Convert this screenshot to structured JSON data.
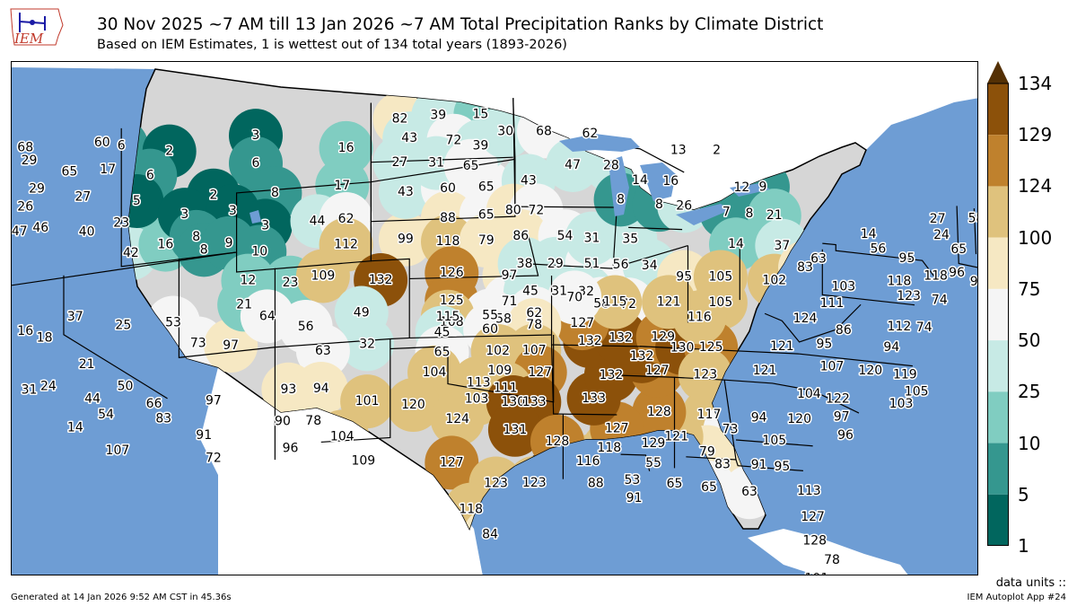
{
  "header": {
    "title": "30 Nov 2025 ~7 AM till 13 Jan 2026 ~7 AM Total Precipitation Ranks by Climate District",
    "subtitle": "Based on IEM Estimates, 1 is wettest out of 134 total years (1893-2026)",
    "logo_text": "IEM"
  },
  "colorbar": {
    "ticks": [
      "134",
      "129",
      "124",
      "100",
      "75",
      "50",
      "25",
      "10",
      "5",
      "1"
    ],
    "bins": [
      {
        "from": 1,
        "to": 5,
        "color": "#01665e"
      },
      {
        "from": 5,
        "to": 10,
        "color": "#35978f"
      },
      {
        "from": 10,
        "to": 25,
        "color": "#80cdc1"
      },
      {
        "from": 25,
        "to": 50,
        "color": "#c7eae5"
      },
      {
        "from": 50,
        "to": 75,
        "color": "#f5f5f5"
      },
      {
        "from": 75,
        "to": 100,
        "color": "#f6e8c3"
      },
      {
        "from": 100,
        "to": 124,
        "color": "#dfc27d"
      },
      {
        "from": 124,
        "to": 129,
        "color": "#bf812d"
      },
      {
        "from": 129,
        "to": 134,
        "color": "#8c510a"
      }
    ],
    "extend_color": "#543005"
  },
  "colors": {
    "ocean": "#6e9dd4",
    "land_outside": "#ffffff",
    "border": "#000000"
  },
  "map_labels": [
    {
      "v": 68,
      "lon": -122.0,
      "lat": 48.8
    },
    {
      "v": 19,
      "lon": -123.8,
      "lat": 48.4
    },
    {
      "v": 8,
      "lon": -123.0,
      "lat": 48.1
    },
    {
      "v": 29,
      "lon": -121.8,
      "lat": 48.1
    },
    {
      "v": 60,
      "lon": -118.0,
      "lat": 48.4
    },
    {
      "v": 6,
      "lon": -117.0,
      "lat": 48.1
    },
    {
      "v": 65,
      "lon": -119.7,
      "lat": 47.2
    },
    {
      "v": 17,
      "lon": -117.7,
      "lat": 47.0
    },
    {
      "v": 29,
      "lon": -121.4,
      "lat": 46.6
    },
    {
      "v": 25,
      "lon": -123.9,
      "lat": 45.8
    },
    {
      "v": 26,
      "lon": -122.0,
      "lat": 45.8
    },
    {
      "v": 27,
      "lon": -119.0,
      "lat": 45.8
    },
    {
      "v": 54,
      "lon": -123.8,
      "lat": 44.6
    },
    {
      "v": 47,
      "lon": -122.3,
      "lat": 44.6
    },
    {
      "v": 46,
      "lon": -121.2,
      "lat": 44.6
    },
    {
      "v": 40,
      "lon": -118.8,
      "lat": 44.0
    },
    {
      "v": 23,
      "lon": -117.0,
      "lat": 44.2
    },
    {
      "v": 42,
      "lon": -116.5,
      "lat": 42.6
    },
    {
      "v": 16,
      "lon": -114.7,
      "lat": 42.8
    },
    {
      "v": 2,
      "lon": -114.5,
      "lat": 47.5
    },
    {
      "v": 3,
      "lon": -110.0,
      "lat": 47.8
    },
    {
      "v": 6,
      "lon": -115.5,
      "lat": 46.4
    },
    {
      "v": 6,
      "lon": -110.0,
      "lat": 46.4
    },
    {
      "v": 5,
      "lon": -116.2,
      "lat": 45.2
    },
    {
      "v": 2,
      "lon": -112.2,
      "lat": 45.0
    },
    {
      "v": 8,
      "lon": -109.0,
      "lat": 44.8
    },
    {
      "v": 16,
      "lon": -105.3,
      "lat": 46.8
    },
    {
      "v": 17,
      "lon": -105.5,
      "lat": 44.9
    },
    {
      "v": 3,
      "lon": -113.7,
      "lat": 44.2
    },
    {
      "v": 3,
      "lon": -111.2,
      "lat": 44.1
    },
    {
      "v": 3,
      "lon": -109.5,
      "lat": 43.2
    },
    {
      "v": 8,
      "lon": -113.1,
      "lat": 43.0
    },
    {
      "v": 8,
      "lon": -112.7,
      "lat": 42.3
    },
    {
      "v": 9,
      "lon": -111.4,
      "lat": 42.5
    },
    {
      "v": 10,
      "lon": -109.8,
      "lat": 41.9
    },
    {
      "v": 44,
      "lon": -106.8,
      "lat": 43.2
    },
    {
      "v": 62,
      "lon": -105.3,
      "lat": 43.2
    },
    {
      "v": 12,
      "lon": -110.4,
      "lat": 40.5
    },
    {
      "v": 23,
      "lon": -108.2,
      "lat": 40.2
    },
    {
      "v": 109,
      "lon": -106.5,
      "lat": 40.4
    },
    {
      "v": 112,
      "lon": -105.3,
      "lat": 41.9
    },
    {
      "v": 99,
      "lon": -102.2,
      "lat": 42.0
    },
    {
      "v": 43,
      "lon": -102.2,
      "lat": 44.4
    },
    {
      "v": 60,
      "lon": -100.0,
      "lat": 44.5
    },
    {
      "v": 65,
      "lon": -98.0,
      "lat": 44.5
    },
    {
      "v": 88,
      "lon": -100.0,
      "lat": 43.0
    },
    {
      "v": 65,
      "lon": -98.0,
      "lat": 43.1
    },
    {
      "v": 118,
      "lon": -100.0,
      "lat": 41.8
    },
    {
      "v": 79,
      "lon": -98.0,
      "lat": 41.8
    },
    {
      "v": 132,
      "lon": -103.5,
      "lat": 40.0
    },
    {
      "v": 126,
      "lon": -99.8,
      "lat": 40.2
    },
    {
      "v": 97,
      "lon": -96.8,
      "lat": 40.0
    },
    {
      "v": 125,
      "lon": -99.8,
      "lat": 38.8
    },
    {
      "v": 71,
      "lon": -96.8,
      "lat": 38.7
    },
    {
      "v": 108,
      "lon": -99.8,
      "lat": 37.7
    },
    {
      "v": 58,
      "lon": -97.1,
      "lat": 37.8
    },
    {
      "v": 82,
      "lon": -102.5,
      "lat": 48.1
    },
    {
      "v": 39,
      "lon": -100.5,
      "lat": 48.2
    },
    {
      "v": 15,
      "lon": -98.3,
      "lat": 48.2
    },
    {
      "v": 43,
      "lon": -102.0,
      "lat": 47.1
    },
    {
      "v": 72,
      "lon": -99.7,
      "lat": 46.9
    },
    {
      "v": 39,
      "lon": -98.3,
      "lat": 46.6
    },
    {
      "v": 27,
      "lon": -102.5,
      "lat": 45.9
    },
    {
      "v": 31,
      "lon": -100.6,
      "lat": 45.8
    },
    {
      "v": 65,
      "lon": -98.8,
      "lat": 45.6
    },
    {
      "v": 30,
      "lon": -97.0,
      "lat": 47.3
    },
    {
      "v": 68,
      "lon": -95.0,
      "lat": 47.3
    },
    {
      "v": 62,
      "lon": -92.6,
      "lat": 47.2
    },
    {
      "v": 47,
      "lon": -93.5,
      "lat": 45.6
    },
    {
      "v": 43,
      "lon": -95.8,
      "lat": 44.8
    },
    {
      "v": 80,
      "lon": -96.6,
      "lat": 43.3
    },
    {
      "v": 72,
      "lon": -95.4,
      "lat": 43.3
    },
    {
      "v": 86,
      "lon": -96.2,
      "lat": 42.0
    },
    {
      "v": 54,
      "lon": -93.9,
      "lat": 42.0
    },
    {
      "v": 38,
      "lon": -96.0,
      "lat": 40.6
    },
    {
      "v": 29,
      "lon": -94.4,
      "lat": 40.6
    },
    {
      "v": 51,
      "lon": -92.5,
      "lat": 40.6
    },
    {
      "v": 56,
      "lon": -91.0,
      "lat": 40.6
    },
    {
      "v": 34,
      "lon": -89.5,
      "lat": 40.6
    },
    {
      "v": 45,
      "lon": -95.7,
      "lat": 39.2
    },
    {
      "v": 31,
      "lon": -94.2,
      "lat": 39.2
    },
    {
      "v": 32,
      "lon": -92.8,
      "lat": 39.2
    },
    {
      "v": 58,
      "lon": -92.0,
      "lat": 38.6
    },
    {
      "v": 72,
      "lon": -90.6,
      "lat": 38.6
    },
    {
      "v": 31,
      "lon": -92.5,
      "lat": 41.9
    },
    {
      "v": 35,
      "lon": -90.5,
      "lat": 41.9
    },
    {
      "v": 28,
      "lon": -91.5,
      "lat": 45.6
    },
    {
      "v": 14,
      "lon": -90.0,
      "lat": 44.9
    },
    {
      "v": 16,
      "lon": -88.4,
      "lat": 44.9
    },
    {
      "v": 8,
      "lon": -91.0,
      "lat": 43.9
    },
    {
      "v": 8,
      "lon": -89.0,
      "lat": 43.7
    },
    {
      "v": 26,
      "lon": -87.7,
      "lat": 43.7
    },
    {
      "v": 13,
      "lon": -88.0,
      "lat": 46.5
    },
    {
      "v": 2,
      "lon": -86.0,
      "lat": 46.6
    },
    {
      "v": 12,
      "lon": -84.7,
      "lat": 44.8
    },
    {
      "v": 9,
      "lon": -83.6,
      "lat": 44.9
    },
    {
      "v": 7,
      "lon": -85.5,
      "lat": 43.5
    },
    {
      "v": 8,
      "lon": -84.3,
      "lat": 43.5
    },
    {
      "v": 21,
      "lon": -83.0,
      "lat": 43.5
    },
    {
      "v": 14,
      "lon": -85.0,
      "lat": 41.9
    },
    {
      "v": 37,
      "lon": -82.6,
      "lat": 42.0
    },
    {
      "v": 95,
      "lon": -87.7,
      "lat": 40.1
    },
    {
      "v": 105,
      "lon": -85.8,
      "lat": 40.2
    },
    {
      "v": 105,
      "lon": -85.8,
      "lat": 38.9
    },
    {
      "v": 102,
      "lon": -83.0,
      "lat": 40.2
    },
    {
      "v": 83,
      "lon": -81.4,
      "lat": 41.0
    },
    {
      "v": 103,
      "lon": -79.4,
      "lat": 40.2
    },
    {
      "v": 118,
      "lon": -76.5,
      "lat": 40.8
    },
    {
      "v": 123,
      "lon": -76.0,
      "lat": 40.1
    },
    {
      "v": 111,
      "lon": -80.0,
      "lat": 39.3
    },
    {
      "v": 124,
      "lon": -81.4,
      "lat": 38.4
    },
    {
      "v": 112,
      "lon": -76.5,
      "lat": 38.5
    },
    {
      "v": 74,
      "lon": -75.2,
      "lat": 38.6
    },
    {
      "v": 86,
      "lon": -79.4,
      "lat": 38.0
    },
    {
      "v": 95,
      "lon": -80.4,
      "lat": 37.2
    },
    {
      "v": 94,
      "lon": -76.9,
      "lat": 37.4
    },
    {
      "v": 121,
      "lon": -82.6,
      "lat": 36.9
    },
    {
      "v": 107,
      "lon": -80.0,
      "lat": 36.1
    },
    {
      "v": 120,
      "lon": -78.0,
      "lat": 36.1
    },
    {
      "v": 119,
      "lon": -76.2,
      "lat": 36.1
    },
    {
      "v": 105,
      "lon": -75.6,
      "lat": 35.3
    },
    {
      "v": 103,
      "lon": -76.4,
      "lat": 34.6
    },
    {
      "v": 121,
      "lon": -83.5,
      "lat": 35.6
    },
    {
      "v": 104,
      "lon": -81.2,
      "lat": 34.6
    },
    {
      "v": 122,
      "lon": -79.7,
      "lat": 34.5
    },
    {
      "v": 97,
      "lon": -79.5,
      "lat": 33.6
    },
    {
      "v": 96,
      "lon": -79.3,
      "lat": 32.7
    },
    {
      "v": 120,
      "lon": -81.7,
      "lat": 33.3
    },
    {
      "v": 94,
      "lon": -83.8,
      "lat": 33.2
    },
    {
      "v": 105,
      "lon": -83.0,
      "lat": 32.1
    },
    {
      "v": 91,
      "lon": -83.8,
      "lat": 30.8
    },
    {
      "v": 95,
      "lon": -82.6,
      "lat": 30.8
    },
    {
      "v": 113,
      "lon": -81.2,
      "lat": 29.7
    },
    {
      "v": 127,
      "lon": -81.0,
      "lat": 28.4
    },
    {
      "v": 128,
      "lon": -80.9,
      "lat": 27.2
    },
    {
      "v": 78,
      "lon": -80.0,
      "lat": 26.3
    },
    {
      "v": 101,
      "lon": -80.8,
      "lat": 25.3
    },
    {
      "v": 117,
      "lon": -86.4,
      "lat": 33.2
    },
    {
      "v": 73,
      "lon": -85.3,
      "lat": 32.5
    },
    {
      "v": 79,
      "lon": -86.5,
      "lat": 31.3
    },
    {
      "v": 83,
      "lon": -85.7,
      "lat": 30.7
    },
    {
      "v": 63,
      "lon": -84.3,
      "lat": 29.4
    },
    {
      "v": 65,
      "lon": -86.4,
      "lat": 29.5
    },
    {
      "v": 65,
      "lon": -88.2,
      "lat": 29.6
    },
    {
      "v": 55,
      "lon": -89.3,
      "lat": 30.6
    },
    {
      "v": 53,
      "lon": -90.4,
      "lat": 29.7
    },
    {
      "v": 91,
      "lon": -90.3,
      "lat": 28.8
    },
    {
      "v": 88,
      "lon": -92.3,
      "lat": 29.5
    },
    {
      "v": 121,
      "lon": -88.1,
      "lat": 32.0
    },
    {
      "v": 129,
      "lon": -89.3,
      "lat": 31.6
    },
    {
      "v": 128,
      "lon": -89.0,
      "lat": 33.2
    },
    {
      "v": 118,
      "lon": -91.6,
      "lat": 31.3
    },
    {
      "v": 116,
      "lon": -92.7,
      "lat": 30.6
    },
    {
      "v": 127,
      "lon": -91.2,
      "lat": 32.3
    },
    {
      "v": 133,
      "lon": -92.4,
      "lat": 33.8
    },
    {
      "v": 132,
      "lon": -91.5,
      "lat": 35.0
    },
    {
      "v": 127,
      "lon": -89.1,
      "lat": 35.3
    },
    {
      "v": 132,
      "lon": -89.9,
      "lat": 36.0
    },
    {
      "v": 132,
      "lon": -92.6,
      "lat": 36.7
    },
    {
      "v": 132,
      "lon": -91.0,
      "lat": 36.9
    },
    {
      "v": 129,
      "lon": -88.8,
      "lat": 37.0
    },
    {
      "v": 130,
      "lon": -87.8,
      "lat": 36.5
    },
    {
      "v": 125,
      "lon": -86.3,
      "lat": 36.6
    },
    {
      "v": 123,
      "lon": -86.6,
      "lat": 35.2
    },
    {
      "v": 127,
      "lon": -93.0,
      "lat": 37.6
    },
    {
      "v": 115,
      "lon": -91.3,
      "lat": 38.7
    },
    {
      "v": 121,
      "lon": -88.5,
      "lat": 38.8
    },
    {
      "v": 116,
      "lon": -86.9,
      "lat": 38.1
    },
    {
      "v": 70,
      "lon": -93.4,
      "lat": 38.9
    },
    {
      "v": 55,
      "lon": -97.8,
      "lat": 38.0
    },
    {
      "v": 62,
      "lon": -95.5,
      "lat": 38.1
    },
    {
      "v": 115,
      "lon": -100.0,
      "lat": 38.0
    },
    {
      "v": 45,
      "lon": -100.3,
      "lat": 37.2
    },
    {
      "v": 60,
      "lon": -97.8,
      "lat": 37.3
    },
    {
      "v": 78,
      "lon": -95.5,
      "lat": 37.5
    },
    {
      "v": 65,
      "lon": -100.3,
      "lat": 36.2
    },
    {
      "v": 102,
      "lon": -97.4,
      "lat": 36.2
    },
    {
      "v": 107,
      "lon": -95.5,
      "lat": 36.2
    },
    {
      "v": 109,
      "lon": -97.3,
      "lat": 35.2
    },
    {
      "v": 127,
      "lon": -95.2,
      "lat": 35.1
    },
    {
      "v": 104,
      "lon": -100.7,
      "lat": 35.2
    },
    {
      "v": 113,
      "lon": -98.4,
      "lat": 34.6
    },
    {
      "v": 111,
      "lon": -97.0,
      "lat": 34.3
    },
    {
      "v": 103,
      "lon": -98.5,
      "lat": 33.8
    },
    {
      "v": 130,
      "lon": -96.6,
      "lat": 33.6
    },
    {
      "v": 133,
      "lon": -95.5,
      "lat": 33.6
    },
    {
      "v": 120,
      "lon": -101.8,
      "lat": 33.6
    },
    {
      "v": 124,
      "lon": -99.5,
      "lat": 32.8
    },
    {
      "v": 131,
      "lon": -96.5,
      "lat": 32.2
    },
    {
      "v": 128,
      "lon": -94.3,
      "lat": 31.6
    },
    {
      "v": 109,
      "lon": -104.4,
      "lat": 30.9
    },
    {
      "v": 127,
      "lon": -99.8,
      "lat": 30.6
    },
    {
      "v": 123,
      "lon": -97.5,
      "lat": 29.5
    },
    {
      "v": 123,
      "lon": -95.5,
      "lat": 29.5
    },
    {
      "v": 118,
      "lon": -98.8,
      "lat": 28.2
    },
    {
      "v": 84,
      "lon": -97.8,
      "lat": 26.9
    },
    {
      "v": 23,
      "lon": -123.3,
      "lat": 40.4
    },
    {
      "v": 16,
      "lon": -122.0,
      "lat": 39.5
    },
    {
      "v": 18,
      "lon": -121.0,
      "lat": 39.0
    },
    {
      "v": 37,
      "lon": -119.4,
      "lat": 39.8
    },
    {
      "v": 25,
      "lon": -116.9,
      "lat": 39.0
    },
    {
      "v": 21,
      "lon": -118.8,
      "lat": 37.3
    },
    {
      "v": 31,
      "lon": -121.8,
      "lat": 36.5
    },
    {
      "v": 24,
      "lon": -120.8,
      "lat": 36.5
    },
    {
      "v": 44,
      "lon": -118.5,
      "lat": 35.5
    },
    {
      "v": 50,
      "lon": -116.8,
      "lat": 35.9
    },
    {
      "v": 14,
      "lon": -119.4,
      "lat": 34.2
    },
    {
      "v": 54,
      "lon": -117.8,
      "lat": 34.6
    },
    {
      "v": 66,
      "lon": -115.3,
      "lat": 34.8
    },
    {
      "v": 107,
      "lon": -117.2,
      "lat": 32.7
    },
    {
      "v": 83,
      "lon": -114.8,
      "lat": 34.0
    },
    {
      "v": 91,
      "lon": -112.7,
      "lat": 32.9
    },
    {
      "v": 97,
      "lon": -112.2,
      "lat": 34.6
    },
    {
      "v": 72,
      "lon": -112.2,
      "lat": 31.7
    },
    {
      "v": 53,
      "lon": -114.3,
      "lat": 38.8
    },
    {
      "v": 73,
      "lon": -113.0,
      "lat": 37.6
    },
    {
      "v": 97,
      "lon": -111.3,
      "lat": 37.3
    },
    {
      "v": 21,
      "lon": -110.6,
      "lat": 39.3
    },
    {
      "v": 64,
      "lon": -109.4,
      "lat": 38.6
    },
    {
      "v": 56,
      "lon": -107.4,
      "lat": 37.9
    },
    {
      "v": 49,
      "lon": -104.5,
      "lat": 38.4
    },
    {
      "v": 32,
      "lon": -104.2,
      "lat": 36.8
    },
    {
      "v": 63,
      "lon": -106.5,
      "lat": 36.6
    },
    {
      "v": 93,
      "lon": -108.3,
      "lat": 34.8
    },
    {
      "v": 94,
      "lon": -106.6,
      "lat": 34.7
    },
    {
      "v": 101,
      "lon": -104.2,
      "lat": 33.9
    },
    {
      "v": 90,
      "lon": -108.6,
      "lat": 33.2
    },
    {
      "v": 78,
      "lon": -107.0,
      "lat": 33.1
    },
    {
      "v": 104,
      "lon": -105.5,
      "lat": 32.2
    },
    {
      "v": 96,
      "lon": -108.2,
      "lat": 31.8
    },
    {
      "v": 63,
      "lon": -80.7,
      "lat": 41.5
    },
    {
      "v": 14,
      "lon": -78.1,
      "lat": 43.0
    },
    {
      "v": 56,
      "lon": -77.6,
      "lat": 42.3
    },
    {
      "v": 95,
      "lon": -76.1,
      "lat": 42.0
    },
    {
      "v": 118,
      "lon": -74.6,
      "lat": 41.3
    },
    {
      "v": 96,
      "lon": -73.5,
      "lat": 41.6
    },
    {
      "v": 74,
      "lon": -74.4,
      "lat": 40.1
    },
    {
      "v": 98,
      "lon": -72.4,
      "lat": 41.3
    },
    {
      "v": 89,
      "lon": -71.8,
      "lat": 42.5
    },
    {
      "v": 100,
      "lon": -70.4,
      "lat": 42.9
    },
    {
      "v": 65,
      "lon": -73.4,
      "lat": 42.8
    },
    {
      "v": 27,
      "lon": -74.5,
      "lat": 44.2
    },
    {
      "v": 24,
      "lon": -74.3,
      "lat": 43.4
    },
    {
      "v": 58,
      "lon": -72.5,
      "lat": 44.5
    },
    {
      "v": 65,
      "lon": -71.2,
      "lat": 45.1
    },
    {
      "v": 86,
      "lon": -70.3,
      "lat": 44.4
    },
    {
      "v": 74,
      "lon": -69.0,
      "lat": 46.9
    },
    {
      "v": 77,
      "lon": -68.0,
      "lat": 45.6
    }
  ],
  "footer": {
    "units": "data units ::",
    "generated": "Generated at 14 Jan 2026 9:52 AM CST in 45.36s",
    "app": "IEM Autoplot App #24"
  }
}
